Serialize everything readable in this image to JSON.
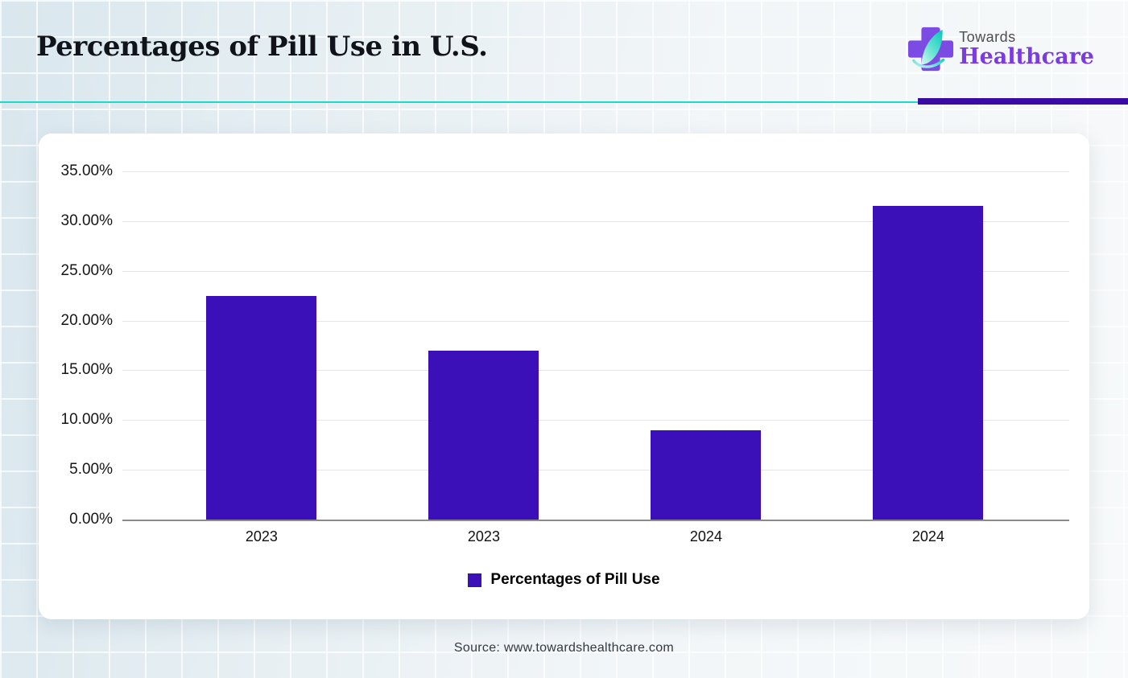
{
  "header": {
    "title": "Percentages of Pill Use in U.S.",
    "brand_top": "Towards",
    "brand_bottom": "Healthcare"
  },
  "footer": {
    "source": "Source: www.towardshealthcare.com"
  },
  "colors": {
    "bar": "#3b10b8",
    "divider_teal": "#1ed9c6",
    "divider_purple": "#3a0ca3",
    "logo_cross_purple": "#7c4be3",
    "logo_leaf_teal": "#1accbd",
    "brand_text_purple": "#7a3be0",
    "gridline": "#e5e5e8",
    "axis_line": "#8b8b8b"
  },
  "chart_data": {
    "type": "bar",
    "title": "Percentages of Pill Use in U.S.",
    "categories": [
      "2023",
      "2023",
      "2024",
      "2024"
    ],
    "series": [
      {
        "name": "Percentages of Pill Use",
        "values": [
          22.5,
          17.0,
          9.0,
          31.5
        ]
      }
    ],
    "legend": "Percentages of Pill Use",
    "legend_position": "bottom-center",
    "xlabel": "",
    "ylabel": "",
    "ylim": [
      0,
      35
    ],
    "ytick_step": 5,
    "ytick_labels": [
      "0.00%",
      "5.00%",
      "10.00%",
      "15.00%",
      "20.00%",
      "25.00%",
      "30.00%",
      "35.00%"
    ],
    "grid": true,
    "unit": "percent"
  }
}
